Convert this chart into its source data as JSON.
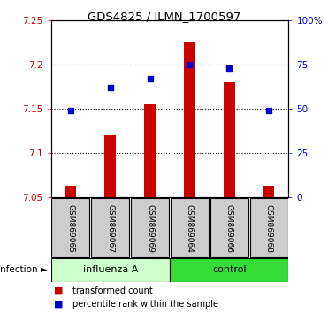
{
  "title": "GDS4825 / ILMN_1700597",
  "samples": [
    "GSM869065",
    "GSM869067",
    "GSM869069",
    "GSM869064",
    "GSM869066",
    "GSM869068"
  ],
  "bar_values": [
    7.063,
    7.12,
    7.155,
    7.225,
    7.18,
    7.063
  ],
  "dot_values": [
    49,
    62,
    67,
    75,
    73,
    49
  ],
  "bar_baseline": 7.05,
  "ylim_left": [
    7.05,
    7.25
  ],
  "ylim_right": [
    0,
    100
  ],
  "yticks_left": [
    7.05,
    7.1,
    7.15,
    7.2,
    7.25
  ],
  "yticks_right": [
    0,
    25,
    50,
    75,
    100
  ],
  "ytick_labels_left": [
    "7.05",
    "7.1",
    "7.15",
    "7.2",
    "7.25"
  ],
  "ytick_labels_right": [
    "0",
    "25",
    "50",
    "75",
    "100%"
  ],
  "bar_color": "#cc0000",
  "dot_color": "#0000cc",
  "left_ycolor": "#cc0000",
  "right_ycolor": "#0000cc",
  "tick_area_bg": "#cccccc",
  "inf_color": "#ccffcc",
  "ctrl_color": "#33dd33",
  "legend_red_label": "transformed count",
  "legend_blue_label": "percentile rank within the sample"
}
